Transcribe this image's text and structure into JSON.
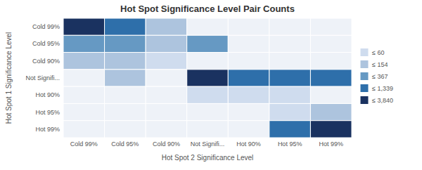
{
  "chart_data": {
    "type": "heatmap",
    "title": "Hot Spot Significance Level Pair Counts",
    "xlabel": "Hot Spot 2 Significance Level",
    "ylabel": "Hot Spot 1 Significance Level",
    "categories": [
      "Cold 99%",
      "Cold 95%",
      "Cold 90%",
      "Not Signifi...",
      "Hot 90%",
      "Hot 95%",
      "Hot 99%"
    ],
    "y_categories": [
      "Cold 99%",
      "Cold 95%",
      "Cold 90%",
      "Not Signifi...",
      "Hot 90%",
      "Hot 95%",
      "Hot 99%"
    ],
    "values": [
      [
        3840,
        1339,
        154,
        0,
        0,
        0,
        0
      ],
      [
        367,
        367,
        154,
        367,
        0,
        0,
        0
      ],
      [
        154,
        154,
        60,
        0,
        0,
        0,
        0
      ],
      [
        0,
        154,
        0,
        3840,
        1339,
        1339,
        1339
      ],
      [
        0,
        0,
        0,
        60,
        60,
        60,
        0
      ],
      [
        0,
        0,
        0,
        0,
        0,
        60,
        154
      ],
      [
        0,
        0,
        0,
        0,
        0,
        1339,
        3840
      ]
    ],
    "color_bins": {
      "values": [
        60,
        154,
        367,
        1339,
        3840
      ],
      "labels": [
        "≤ 60",
        "≤ 154",
        "≤ 367",
        "≤ 1,339",
        "≤ 3,840"
      ],
      "colors": [
        "#cfdcee",
        "#adc4de",
        "#6699c3",
        "#2e6faa",
        "#1a3260"
      ]
    },
    "zero_color": "#eef2f8",
    "legend": "right"
  }
}
